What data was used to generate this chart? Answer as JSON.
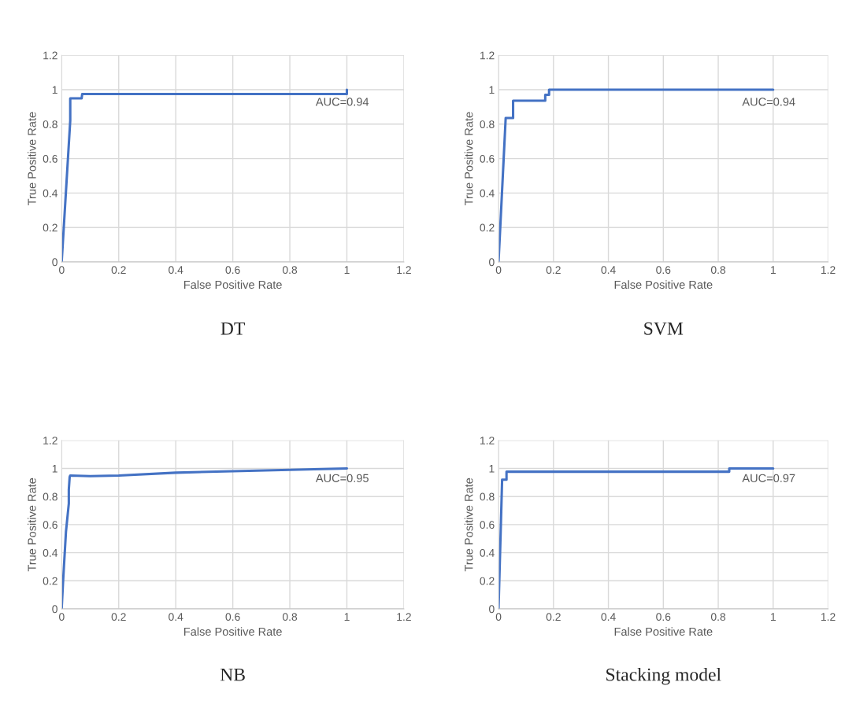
{
  "chart_data": [
    {
      "type": "line",
      "title": "DT",
      "xlabel": "False Positive Rate",
      "ylabel": "True Positive Rate",
      "annotations": [
        "AUC=0.94"
      ],
      "xlim": [
        0,
        1.2
      ],
      "ylim": [
        0,
        1.2
      ],
      "xticks": [
        0,
        0.2,
        0.4,
        0.6,
        0.8,
        1,
        1.2
      ],
      "yticks": [
        0,
        0.2,
        0.4,
        0.6,
        0.8,
        1,
        1.2
      ],
      "grid": true,
      "legend": false,
      "series": [
        {
          "color": "#4472c4",
          "x": [
            0,
            0.03,
            0.03,
            0.07,
            0.072,
            1,
            1
          ],
          "values": [
            0,
            0.82,
            0.95,
            0.95,
            0.975,
            0.975,
            1
          ]
        }
      ]
    },
    {
      "type": "line",
      "title": "SVM",
      "xlabel": "False Positive Rate",
      "ylabel": "True Positive Rate",
      "annotations": [
        "AUC=0.94"
      ],
      "xlim": [
        0,
        1.2
      ],
      "ylim": [
        0,
        1.2
      ],
      "xticks": [
        0,
        0.2,
        0.4,
        0.6,
        0.8,
        1,
        1.2
      ],
      "yticks": [
        0,
        0.2,
        0.4,
        0.6,
        0.8,
        1,
        1.2
      ],
      "grid": true,
      "legend": false,
      "series": [
        {
          "color": "#4472c4",
          "x": [
            0,
            0.026,
            0.053,
            0.053,
            0.17,
            0.17,
            0.184,
            0.184,
            1
          ],
          "values": [
            0,
            0.836,
            0.836,
            0.936,
            0.936,
            0.97,
            0.97,
            1,
            1
          ]
        }
      ]
    },
    {
      "type": "line",
      "title": "NB",
      "xlabel": "False Positive Rate",
      "ylabel": "True Positive Rate",
      "annotations": [
        "AUC=0.95"
      ],
      "xlim": [
        0,
        1.2
      ],
      "ylim": [
        0,
        1.2
      ],
      "xticks": [
        0,
        0.2,
        0.4,
        0.6,
        0.8,
        1,
        1.2
      ],
      "yticks": [
        0,
        0.2,
        0.4,
        0.6,
        0.8,
        1,
        1.2
      ],
      "grid": true,
      "legend": false,
      "series": [
        {
          "color": "#4472c4",
          "x": [
            0,
            0.005,
            0.015,
            0.025,
            0.025,
            0.028,
            0.03,
            0.1,
            0.2,
            0.4,
            0.6,
            0.8,
            1
          ],
          "values": [
            0,
            0.2,
            0.55,
            0.75,
            0.85,
            0.94,
            0.95,
            0.945,
            0.95,
            0.97,
            0.98,
            0.99,
            1
          ]
        }
      ]
    },
    {
      "type": "line",
      "title": "Stacking model",
      "xlabel": "False Positive Rate",
      "ylabel": "True Positive Rate",
      "annotations": [
        "AUC=0.97"
      ],
      "xlim": [
        0,
        1.2
      ],
      "ylim": [
        0,
        1.2
      ],
      "xticks": [
        0,
        0.2,
        0.4,
        0.6,
        0.8,
        1,
        1.2
      ],
      "yticks": [
        0,
        0.2,
        0.4,
        0.6,
        0.8,
        1,
        1.2
      ],
      "grid": true,
      "legend": false,
      "series": [
        {
          "color": "#4472c4",
          "x": [
            0,
            0.013,
            0.029,
            0.029,
            0.84,
            0.84,
            1
          ],
          "values": [
            0,
            0.92,
            0.92,
            0.977,
            0.977,
            1,
            1
          ]
        }
      ]
    }
  ]
}
